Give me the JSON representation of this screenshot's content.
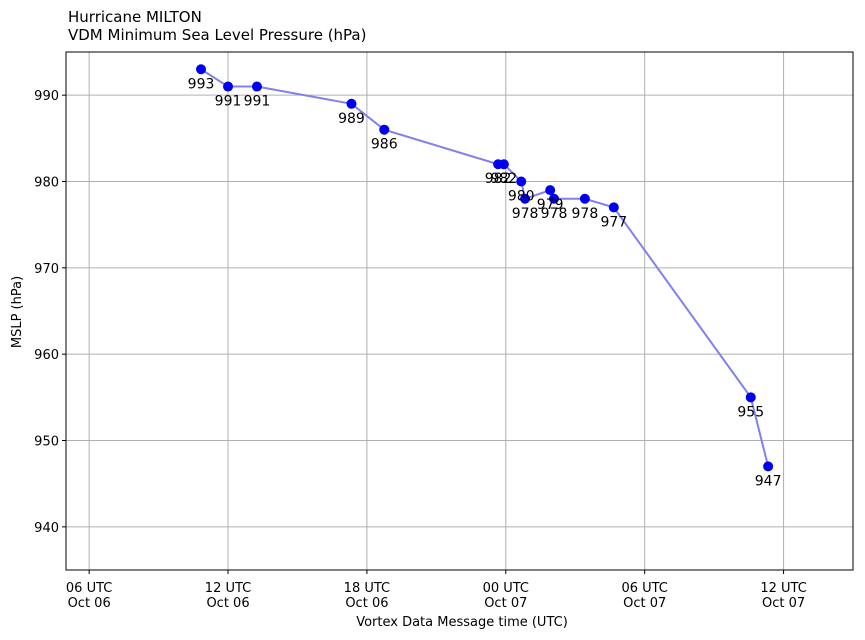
{
  "chart_data": {
    "type": "scatter",
    "title": "Hurricane MILTON",
    "subtitle": "VDM Minimum Sea Level Pressure (hPa)",
    "xlabel": "Vortex Data Message time (UTC)",
    "ylabel": "MSLP (hPa)",
    "ylim": [
      935,
      995
    ],
    "yticks": [
      940,
      950,
      960,
      970,
      980,
      990
    ],
    "xlim": [
      "2024-10-06 05:00",
      "2024-10-07 15:00"
    ],
    "xticks": [
      {
        "x": "2024-10-06 06:00",
        "line1": "06 UTC",
        "line2": "Oct 06"
      },
      {
        "x": "2024-10-06 12:00",
        "line1": "12 UTC",
        "line2": "Oct 06"
      },
      {
        "x": "2024-10-06 18:00",
        "line1": "18 UTC",
        "line2": "Oct 06"
      },
      {
        "x": "2024-10-07 00:00",
        "line1": "00 UTC",
        "line2": "Oct 07"
      },
      {
        "x": "2024-10-07 06:00",
        "line1": "06 UTC",
        "line2": "Oct 07"
      },
      {
        "x": "2024-10-07 12:00",
        "line1": "12 UTC",
        "line2": "Oct 07"
      }
    ],
    "grid": true,
    "marker_color": "#0000ee",
    "line_color": "#8080ee",
    "points": [
      {
        "x": "2024-10-06 10:50",
        "y": 993,
        "label": "993"
      },
      {
        "x": "2024-10-06 12:00",
        "y": 991,
        "label": "991"
      },
      {
        "x": "2024-10-06 13:15",
        "y": 991,
        "label": "991"
      },
      {
        "x": "2024-10-06 17:20",
        "y": 989,
        "label": "989"
      },
      {
        "x": "2024-10-06 18:45",
        "y": 986,
        "label": "986"
      },
      {
        "x": "2024-10-06 23:40",
        "y": 982,
        "label": "982"
      },
      {
        "x": "2024-10-06 23:55",
        "y": 982,
        "label": "982"
      },
      {
        "x": "2024-10-07 00:40",
        "y": 980,
        "label": "980"
      },
      {
        "x": "2024-10-07 00:50",
        "y": 978,
        "label": "978"
      },
      {
        "x": "2024-10-07 01:55",
        "y": 979,
        "label": "979"
      },
      {
        "x": "2024-10-07 02:05",
        "y": 978,
        "label": "978"
      },
      {
        "x": "2024-10-07 03:25",
        "y": 978,
        "label": "978"
      },
      {
        "x": "2024-10-07 04:40",
        "y": 977,
        "label": "977"
      },
      {
        "x": "2024-10-07 10:35",
        "y": 955,
        "label": "955"
      },
      {
        "x": "2024-10-07 11:20",
        "y": 947,
        "label": "947"
      }
    ]
  }
}
